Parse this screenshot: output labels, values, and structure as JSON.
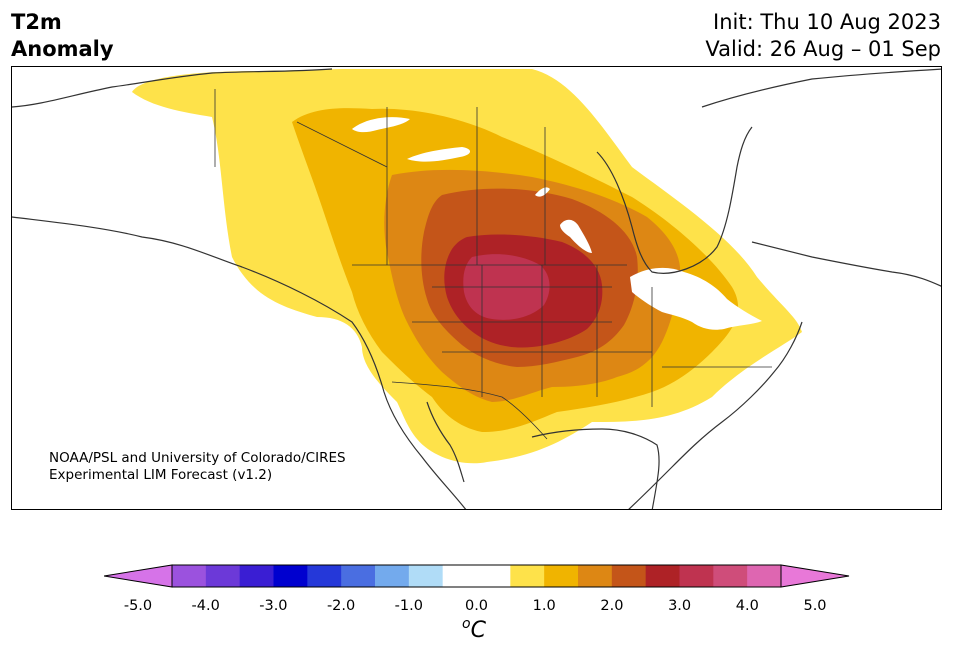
{
  "title": {
    "variable_line1": "T2m",
    "variable_line2": "Anomaly",
    "init_line": "Init: Thu 10 Aug 2023",
    "valid_line": "Valid: 26 Aug – 01 Sep"
  },
  "credit": {
    "line1": "NOAA/PSL and University of Colorado/CIRES",
    "line2": "Experimental LIM Forecast (v1.2)"
  },
  "colorbar": {
    "unit_base": "C",
    "unit_sup": "o",
    "levels": [
      -5.0,
      -4.5,
      -4.0,
      -3.5,
      -3.0,
      -2.5,
      -2.0,
      -1.5,
      -1.0,
      -0.5,
      0.5,
      1.0,
      1.5,
      2.0,
      2.5,
      3.0,
      3.5,
      4.0,
      4.5,
      5.0
    ],
    "tick_labels": [
      "-5.0",
      "-4.0",
      "-3.0",
      "-2.0",
      "-1.0",
      "0.0",
      "1.0",
      "2.0",
      "3.0",
      "4.0",
      "5.0"
    ],
    "colors": {
      "under": "#d673e8",
      "bins": [
        "#d673e8",
        "#9b52de",
        "#6c39d8",
        "#3a1ed3",
        "#0000cf",
        "#2538d9",
        "#4a6ee1",
        "#73aaed",
        "#b0dcf7",
        "#ffffff",
        "#ffffff",
        "#fee24a",
        "#f0b400",
        "#dd8714",
        "#c45519",
        "#ae2226",
        "#bf3350",
        "#cf4d7a",
        "#de66b1",
        "#e878d8"
      ],
      "over": "#e878d8"
    }
  },
  "map": {
    "land_outline_color": "#333333",
    "anomaly_colors": {
      "0.5_1.0": "#fee24a",
      "1.0_1.5": "#f0b400",
      "1.5_2.0": "#dd8714",
      "2.0_2.5": "#c45519",
      "2.5_3.0": "#ae2226",
      "3.0_3.5": "#bf3350"
    }
  }
}
